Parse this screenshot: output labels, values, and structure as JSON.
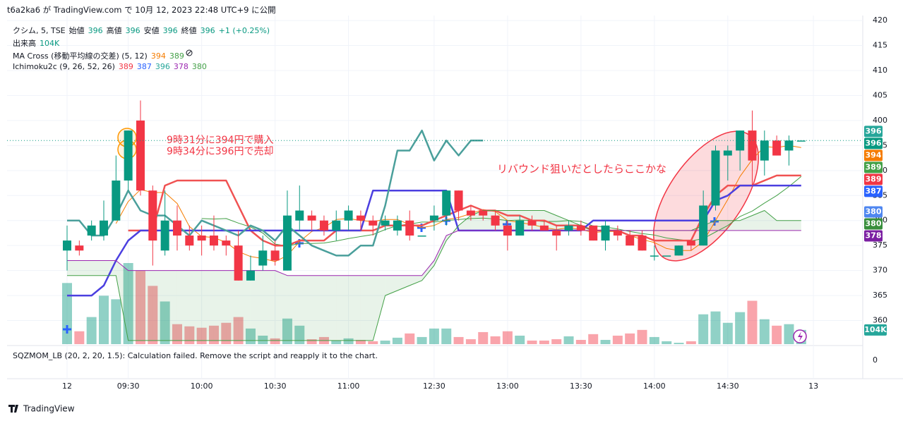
{
  "published": "t6a2ka6 が TradingView.com で 10月 12, 2023 22:48 UTC+9 に公開",
  "legend": {
    "symbol": "クシム, 5, TSE",
    "ohlc": [
      {
        "label": "始値",
        "value": 396
      },
      {
        "label": "高値",
        "value": 396
      },
      {
        "label": "安値",
        "value": 396
      },
      {
        "label": "終値",
        "value": 396
      }
    ],
    "change": "+1 (+0.25%)",
    "volume_title": "出来高",
    "volume_value": "104K",
    "ma_title": "MA Cross (移動平均線の交差) (5, 12)",
    "ma_values": [
      {
        "value": 394,
        "color": "#f57c00"
      },
      {
        "value": 389,
        "color": "#43a047"
      }
    ],
    "ichimoku_title": "Ichimoku2c (9, 26, 52, 26)",
    "ichimoku_values": [
      {
        "value": 389,
        "color": "#f23645"
      },
      {
        "value": 387,
        "color": "#2962ff"
      },
      {
        "value": 396,
        "color": "#26a69a"
      },
      {
        "value": 378,
        "color": "#9c27b0"
      },
      {
        "value": 380,
        "color": "#43a047"
      }
    ]
  },
  "annotations": [
    "9時31分に394円で購入",
    "9時34分に396円で売却",
    "リバウンド狙いだとしたらここかな"
  ],
  "lower_pane": {
    "title": "SQZMOM_LB (20, 2, 20, 1.5): Calculation failed. Remove the script and reapply it to the chart.",
    "yticks": [
      0
    ]
  },
  "footer": "TradingView",
  "chart_data": {
    "type": "candlestick",
    "categories": [
      "12",
      null,
      null,
      null,
      null,
      "09:30",
      null,
      null,
      null,
      null,
      null,
      "10:00",
      null,
      null,
      null,
      null,
      null,
      "10:30",
      null,
      null,
      null,
      null,
      null,
      "11:00",
      null,
      null,
      null,
      null,
      null,
      null,
      "12:30",
      null,
      null,
      null,
      null,
      null,
      "13:00",
      null,
      null,
      null,
      null,
      null,
      "13:30",
      null,
      null,
      null,
      null,
      null,
      "14:00",
      null,
      null,
      null,
      null,
      null,
      "14:30",
      null,
      null,
      null,
      null,
      null,
      null,
      "13"
    ],
    "open": [
      374,
      375,
      377,
      377,
      380,
      388,
      400,
      386,
      374,
      380,
      377,
      377,
      377,
      376,
      375,
      368,
      371,
      374,
      370,
      380,
      381,
      380,
      378,
      380,
      381,
      380,
      379,
      378,
      380,
      377,
      380,
      381,
      386,
      382,
      382,
      381,
      379,
      377,
      380,
      379,
      378,
      378,
      379,
      379,
      376,
      378,
      377,
      377,
      373,
      373,
      373,
      376,
      375,
      383,
      393,
      394,
      398,
      392,
      396,
      394,
      396,
      null
    ],
    "high": [
      379,
      376,
      380,
      384,
      393,
      398,
      404,
      387,
      386,
      383,
      379,
      379,
      381,
      377,
      378,
      373,
      377,
      376,
      386,
      387,
      382,
      381,
      382,
      383,
      382,
      381,
      381,
      381,
      382,
      377,
      383,
      386,
      386,
      383,
      382,
      382,
      380,
      381,
      381,
      380,
      379,
      380,
      380,
      379,
      380,
      379,
      378,
      378,
      375,
      373,
      375,
      376,
      386,
      395,
      395,
      398,
      402,
      398,
      397,
      397,
      396,
      null
    ],
    "low": [
      370,
      373,
      376,
      376,
      380,
      386,
      385,
      371,
      373,
      374,
      374,
      373,
      374,
      373,
      368,
      368,
      370,
      371,
      370,
      378,
      378,
      377,
      376,
      378,
      378,
      377,
      378,
      377,
      376,
      377,
      378,
      379,
      380,
      380,
      380,
      378,
      374,
      377,
      378,
      378,
      374,
      377,
      377,
      376,
      374,
      376,
      375,
      374,
      372,
      373,
      373,
      374,
      375,
      382,
      388,
      390,
      387,
      389,
      393,
      391,
      396,
      null
    ],
    "close": [
      376,
      374,
      379,
      380,
      388,
      398,
      386,
      376,
      380,
      377,
      375,
      376,
      375,
      375,
      368,
      370,
      374,
      372,
      381,
      382,
      380,
      378,
      380,
      382,
      380,
      379,
      380,
      380,
      377,
      377,
      381,
      386,
      382,
      381,
      381,
      379,
      377,
      380,
      379,
      378,
      377,
      379,
      378,
      376,
      379,
      377,
      375,
      374,
      373,
      373,
      375,
      375,
      383,
      394,
      394,
      398,
      392,
      396,
      393,
      396,
      396,
      null
    ],
    "volume": [
      447,
      94,
      198,
      354,
      328,
      593,
      536,
      426,
      312,
      146,
      130,
      120,
      135,
      156,
      198,
      114,
      62,
      42,
      187,
      135,
      36,
      52,
      26,
      42,
      31,
      21,
      26,
      47,
      78,
      52,
      114,
      114,
      52,
      36,
      88,
      57,
      94,
      62,
      26,
      26,
      36,
      57,
      31,
      73,
      31,
      62,
      78,
      104,
      52,
      21,
      10,
      21,
      218,
      239,
      156,
      234,
      317,
      182,
      135,
      146,
      104,
      null
    ],
    "up_color": "#089981",
    "down_color": "#f23645",
    "series": [
      {
        "color": "#f57c00",
        "width": 1,
        "values": [
          null,
          null,
          null,
          null,
          379.4,
          383.8,
          386.2,
          385.6,
          385.6,
          383.4,
          378.8,
          376.8,
          376.6,
          375.6,
          373.8,
          372.8,
          372.4,
          371.8,
          373,
          375.8,
          377.8,
          378.6,
          380.2,
          380.4,
          380,
          379.8,
          380.2,
          380.2,
          379.2,
          378.6,
          379,
          380.2,
          380.6,
          381.4,
          382.2,
          381.8,
          380,
          379.6,
          379.2,
          378.6,
          378.2,
          378.6,
          378.2,
          377.6,
          377.8,
          377.8,
          377,
          376.2,
          375.6,
          374.4,
          374,
          374,
          375.8,
          380,
          384.2,
          388.8,
          392.2,
          394.8,
          394.6,
          395,
          394.6,
          null
        ]
      },
      {
        "color": "#43a047",
        "width": 1,
        "values": [
          null,
          null,
          null,
          null,
          null,
          null,
          null,
          null,
          null,
          null,
          null,
          380.4,
          380.3,
          380.4,
          379.5,
          378.7,
          377.5,
          375.3,
          374.9,
          375.4,
          375.4,
          375.5,
          375.9,
          376.4,
          376.8,
          377.2,
          378.2,
          379,
          379.3,
          379.7,
          379.7,
          380,
          380.2,
          380.4,
          380.5,
          380.3,
          380,
          380.1,
          380,
          379.8,
          379.8,
          380,
          379.8,
          378.9,
          378.7,
          378.3,
          377.8,
          377.4,
          377.1,
          376.5,
          376.2,
          375.9,
          376.4,
          377.7,
          379,
          380.8,
          381.9,
          383.5,
          385,
          386.8,
          388.8,
          null
        ]
      },
      {
        "color": "#f05252",
        "width": 2.5,
        "values": [
          null,
          null,
          null,
          null,
          null,
          378,
          378,
          378,
          387,
          388,
          388,
          388,
          388,
          388,
          383,
          378,
          376,
          375,
          375,
          376,
          376,
          376,
          378,
          378,
          378,
          378,
          379,
          379,
          379,
          379,
          380,
          381,
          382,
          383,
          382,
          382,
          381,
          381,
          380,
          380,
          379,
          379,
          379,
          378,
          378,
          378,
          377,
          377,
          376,
          376,
          376,
          376,
          381,
          385,
          387,
          387,
          387,
          388,
          389,
          389,
          389,
          null
        ]
      },
      {
        "color": "#4b3fe0",
        "width": 2.5,
        "values": [
          365,
          365,
          365,
          367,
          372,
          376,
          378,
          378,
          378,
          378,
          378,
          378,
          378,
          378,
          378,
          378,
          378,
          378,
          378,
          378,
          378,
          378,
          378,
          378,
          378,
          386,
          386,
          386,
          386,
          386,
          386,
          386,
          378,
          378,
          378,
          378,
          378,
          378,
          378,
          378,
          378,
          378,
          378,
          380,
          380,
          380,
          380,
          380,
          380,
          380,
          380,
          380,
          380,
          384,
          385,
          387,
          387,
          387,
          387,
          387,
          387,
          null
        ]
      },
      {
        "color": "#4a9f9b",
        "width": 2.5,
        "values": [
          380,
          380,
          377,
          377,
          381,
          386,
          382,
          381,
          381,
          379,
          377,
          380,
          379,
          378,
          377,
          379,
          378,
          376,
          379,
          377,
          375,
          374,
          373,
          373,
          375,
          375,
          383,
          394,
          394,
          398,
          392,
          396,
          393,
          396,
          396,
          null,
          null,
          null,
          null,
          null,
          null,
          null,
          null,
          null,
          null,
          null,
          null,
          null,
          null,
          null,
          null,
          null,
          null,
          null,
          null,
          null,
          null,
          null,
          null,
          null,
          null,
          null
        ]
      },
      {
        "color": "#43a047",
        "width": 1,
        "values": [
          369,
          369,
          369,
          369,
          369,
          356,
          356,
          356,
          356,
          356,
          356,
          356,
          356,
          356,
          356,
          356,
          356,
          356,
          356,
          356,
          356,
          356,
          356,
          356,
          356,
          356,
          365,
          366,
          367,
          368,
          371,
          376,
          379,
          381,
          382,
          382,
          382,
          382,
          382,
          382,
          381,
          380,
          379,
          378,
          378,
          378,
          378,
          378,
          378,
          378,
          378,
          378,
          379,
          380,
          380,
          380,
          381,
          382,
          380,
          380,
          380,
          null
        ]
      },
      {
        "color": "#9c27b0",
        "width": 1,
        "values": [
          372,
          372,
          372,
          372,
          372,
          370,
          370,
          370,
          370,
          370,
          370,
          370,
          370,
          370,
          370,
          370,
          370,
          370,
          369,
          369,
          369,
          369,
          369,
          369,
          369,
          369,
          369,
          369,
          369,
          369,
          372,
          377,
          378,
          378,
          378,
          378,
          378,
          378,
          378,
          378,
          378,
          378,
          378,
          378,
          378,
          378,
          378,
          378,
          378,
          378,
          378,
          378,
          378,
          378,
          378,
          378,
          378,
          378,
          378,
          378,
          378,
          null
        ]
      }
    ],
    "cloud": {
      "color": "rgba(67,160,71,0.12)"
    },
    "price_tags": [
      {
        "value": 396,
        "color": "#26a69a"
      },
      {
        "value": 396,
        "color": "#089981"
      },
      {
        "value": 394,
        "color": "#f57c00"
      },
      {
        "value": 389,
        "color": "#43a047"
      },
      {
        "value": 389,
        "color": "#f23645"
      },
      {
        "value": 387,
        "color": "#2962ff"
      },
      {
        "value": 380,
        "color": "#4e86f0"
      },
      {
        "value": 380,
        "color": "#388e3c"
      },
      {
        "value": 378,
        "color": "#7b1fa2"
      }
    ],
    "volume_tag": {
      "value": 104,
      "label": "104K",
      "color": "#26a69a"
    },
    "ylim": [
      355,
      421
    ],
    "yticks": [
      360,
      365,
      370,
      375,
      380,
      385,
      390,
      395,
      400,
      405,
      410,
      415,
      420
    ],
    "grid": true
  }
}
